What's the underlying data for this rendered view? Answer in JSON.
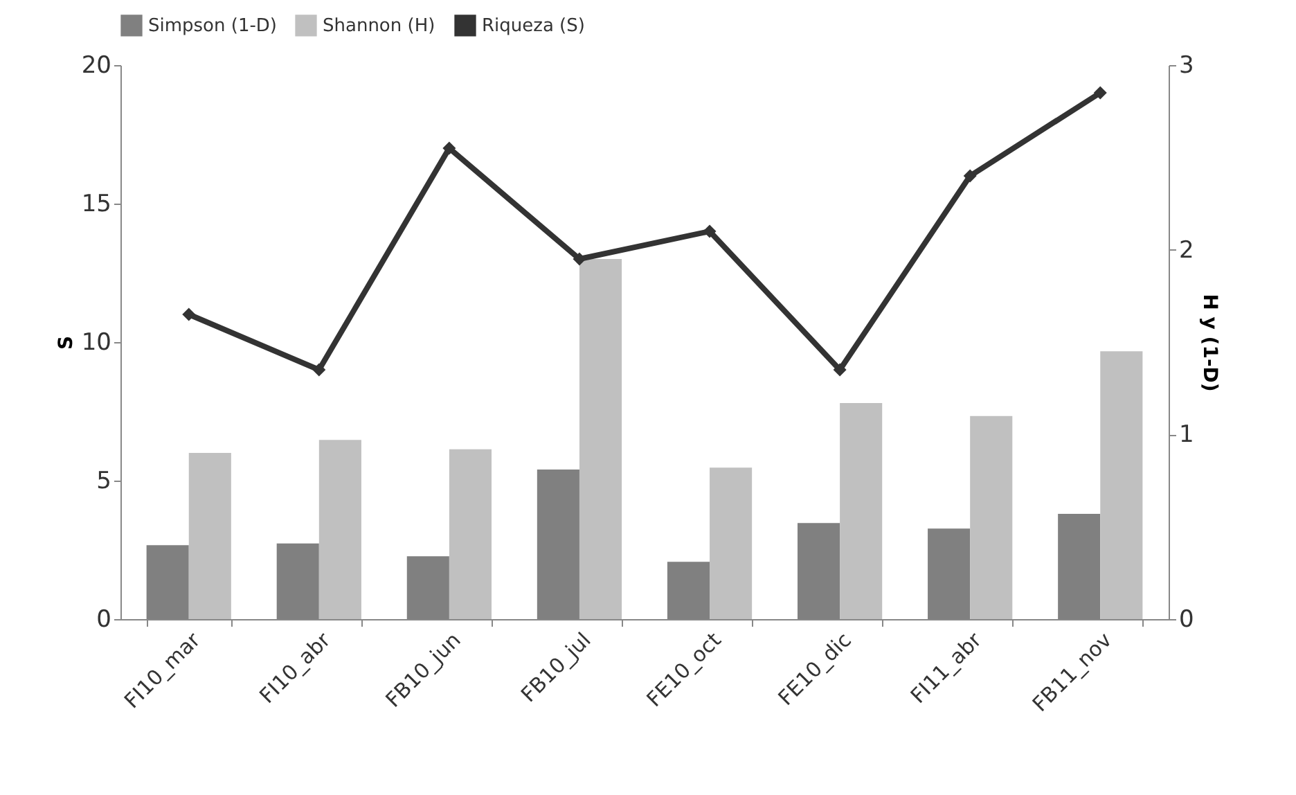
{
  "chart_data": {
    "type": "bar",
    "ylabel": "S",
    "y2label": "H y (1-D)",
    "categories": [
      "FI10_mar",
      "FI10_abr",
      "FB10_jun",
      "FB10_jul",
      "FE10_oct",
      "FE10_dic",
      "FI11_abr",
      "FB11_nov"
    ],
    "series": [
      {
        "name": "Simpson (1-D)",
        "axis": "y2",
        "color": "#808080",
        "values": [
          0.4,
          0.41,
          0.34,
          0.81,
          0.31,
          0.52,
          0.49,
          0.57
        ]
      },
      {
        "name": "Shannon (H)",
        "axis": "y2",
        "color": "#c0c0c0",
        "values": [
          0.9,
          0.97,
          0.92,
          1.95,
          0.82,
          1.17,
          1.1,
          1.45
        ]
      },
      {
        "name": "Riqueza (S)",
        "type": "line",
        "color": "#333333",
        "marker": "diamond",
        "line_style": "solid",
        "values": [
          11,
          9,
          17,
          13,
          14,
          9,
          16,
          19
        ]
      }
    ],
    "ylim": [
      0,
      20
    ],
    "yticks": [
      0,
      5,
      10,
      15,
      20
    ],
    "y2lim": [
      0,
      3
    ],
    "y2ticks": [
      0,
      1,
      2,
      3
    ],
    "grid": false,
    "legend": "top"
  }
}
